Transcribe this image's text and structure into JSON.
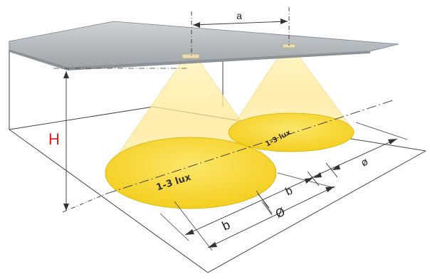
{
  "labels": {
    "top_fragment": "",
    "spacing": "a",
    "height": "H",
    "lux_left": "1-3 lux",
    "lux_right": "1-3 lux",
    "b_upper": "b",
    "b_lower": "b",
    "dia_upper": "ø",
    "dia_lower": "Ø"
  },
  "colors": {
    "height_label": "#e11d1d",
    "top_fragment": "#e11d1d",
    "ceiling": "#aeb4b8",
    "floor_line": "#444444",
    "cone_glow": "#ffe58a",
    "pool_fill": "#f6d52a",
    "pool_edge": "#d9b000"
  }
}
